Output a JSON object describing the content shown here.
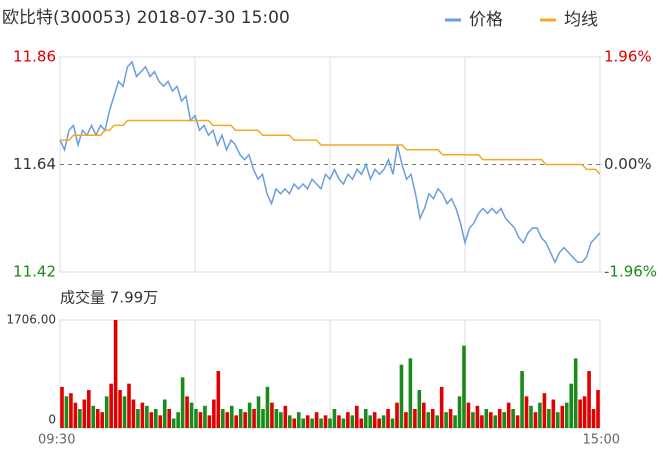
{
  "chart_data": [
    {
      "type": "line",
      "title": "欧比特(300053) 2018-07-30 15:00",
      "ylim": [
        11.42,
        11.86
      ],
      "yticks": [
        11.42,
        11.64,
        11.86
      ],
      "ytick_colors": [
        "#1a8a1a",
        "#333333",
        "#e00000"
      ],
      "y2lim": [
        -1.96,
        1.96
      ],
      "y2ticks": [
        {
          "value": -1.96,
          "label": "-1.96%"
        },
        {
          "value": 0,
          "label": "0.00%"
        },
        {
          "value": 1.96,
          "label": "1.96%"
        }
      ],
      "y2tick_colors": [
        "#1a8a1a",
        "#333333",
        "#e00000"
      ],
      "legend": "top-right",
      "series": [
        {
          "name": "价格",
          "color": "#6a9ee0",
          "values": [
            11.69,
            11.67,
            11.71,
            11.72,
            11.68,
            11.71,
            11.7,
            11.72,
            11.7,
            11.72,
            11.71,
            11.75,
            11.78,
            11.81,
            11.8,
            11.84,
            11.85,
            11.82,
            11.83,
            11.84,
            11.82,
            11.83,
            11.81,
            11.8,
            11.81,
            11.79,
            11.8,
            11.77,
            11.78,
            11.73,
            11.74,
            11.71,
            11.72,
            11.7,
            11.71,
            11.68,
            11.7,
            11.67,
            11.69,
            11.68,
            11.66,
            11.65,
            11.66,
            11.63,
            11.61,
            11.62,
            11.58,
            11.56,
            11.59,
            11.58,
            11.59,
            11.58,
            11.6,
            11.59,
            11.6,
            11.59,
            11.61,
            11.6,
            11.59,
            11.62,
            11.61,
            11.63,
            11.61,
            11.6,
            11.62,
            11.61,
            11.63,
            11.62,
            11.64,
            11.61,
            11.63,
            11.62,
            11.63,
            11.65,
            11.62,
            11.68,
            11.64,
            11.61,
            11.62,
            11.58,
            11.53,
            11.55,
            11.58,
            11.57,
            11.59,
            11.58,
            11.56,
            11.57,
            11.55,
            11.52,
            11.48,
            11.51,
            11.52,
            11.54,
            11.55,
            11.54,
            11.55,
            11.54,
            11.55,
            11.53,
            11.52,
            11.51,
            11.49,
            11.48,
            11.5,
            11.51,
            11.51,
            11.49,
            11.48,
            11.46,
            11.44,
            11.46,
            11.47,
            11.46,
            11.45,
            11.44,
            11.44,
            11.45,
            11.48,
            11.49,
            11.5
          ]
        },
        {
          "name": "均线",
          "color": "#f5a623",
          "values": [
            11.69,
            11.69,
            11.69,
            11.7,
            11.7,
            11.7,
            11.7,
            11.7,
            11.7,
            11.7,
            11.71,
            11.71,
            11.72,
            11.72,
            11.72,
            11.73,
            11.73,
            11.73,
            11.73,
            11.73,
            11.73,
            11.73,
            11.73,
            11.73,
            11.73,
            11.73,
            11.73,
            11.73,
            11.73,
            11.73,
            11.73,
            11.73,
            11.73,
            11.73,
            11.72,
            11.72,
            11.72,
            11.72,
            11.72,
            11.71,
            11.71,
            11.71,
            11.71,
            11.71,
            11.71,
            11.7,
            11.7,
            11.7,
            11.7,
            11.7,
            11.7,
            11.7,
            11.69,
            11.69,
            11.69,
            11.69,
            11.69,
            11.69,
            11.68,
            11.68,
            11.68,
            11.68,
            11.68,
            11.68,
            11.68,
            11.68,
            11.68,
            11.68,
            11.68,
            11.68,
            11.68,
            11.68,
            11.68,
            11.68,
            11.68,
            11.68,
            11.68,
            11.67,
            11.67,
            11.67,
            11.67,
            11.67,
            11.67,
            11.67,
            11.67,
            11.66,
            11.66,
            11.66,
            11.66,
            11.66,
            11.66,
            11.66,
            11.66,
            11.66,
            11.65,
            11.65,
            11.65,
            11.65,
            11.65,
            11.65,
            11.65,
            11.65,
            11.65,
            11.65,
            11.65,
            11.65,
            11.65,
            11.65,
            11.64,
            11.64,
            11.64,
            11.64,
            11.64,
            11.64,
            11.64,
            11.64,
            11.64,
            11.63,
            11.63,
            11.63,
            11.62
          ]
        }
      ]
    },
    {
      "type": "bar",
      "title": "成交量 7.99万",
      "categories": [
        "09:30",
        null,
        null,
        null,
        null,
        null,
        null,
        null,
        null,
        null,
        null,
        null,
        null,
        null,
        null,
        null,
        null,
        null,
        null,
        null,
        null,
        null,
        null,
        null,
        null,
        null,
        null,
        null,
        null,
        null,
        null,
        null,
        null,
        null,
        null,
        null,
        null,
        null,
        null,
        null,
        null,
        null,
        null,
        null,
        null,
        null,
        null,
        null,
        null,
        null,
        null,
        null,
        null,
        null,
        null,
        null,
        null,
        null,
        null,
        null,
        null,
        null,
        null,
        null,
        null,
        null,
        null,
        null,
        null,
        null,
        null,
        null,
        null,
        null,
        null,
        null,
        null,
        null,
        null,
        null,
        null,
        null,
        null,
        null,
        null,
        null,
        null,
        null,
        null,
        null,
        null,
        null,
        null,
        null,
        null,
        null,
        null,
        null,
        null,
        null,
        null,
        null,
        null,
        null,
        null,
        null,
        null,
        null,
        null,
        null,
        null,
        null,
        null,
        null,
        null,
        null,
        null,
        null,
        null,
        null,
        "15:00"
      ],
      "ylim": [
        0,
        1706
      ],
      "yticks": [
        0,
        {
          "value": 1706,
          "label": "1706.00"
        }
      ],
      "values": [
        650,
        500,
        550,
        400,
        300,
        450,
        600,
        350,
        300,
        250,
        500,
        700,
        1706,
        600,
        500,
        700,
        450,
        300,
        400,
        350,
        250,
        300,
        200,
        450,
        300,
        150,
        250,
        800,
        500,
        400,
        300,
        250,
        350,
        200,
        450,
        900,
        300,
        250,
        350,
        200,
        300,
        250,
        400,
        300,
        500,
        300,
        650,
        400,
        300,
        250,
        350,
        200,
        150,
        250,
        150,
        200,
        150,
        250,
        150,
        200,
        150,
        300,
        200,
        150,
        250,
        200,
        350,
        150,
        300,
        200,
        250,
        150,
        200,
        300,
        150,
        400,
        1000,
        250,
        1100,
        300,
        600,
        400,
        250,
        300,
        200,
        650,
        250,
        300,
        200,
        500,
        1300,
        400,
        250,
        350,
        200,
        300,
        250,
        200,
        300,
        250,
        400,
        300,
        200,
        900,
        500,
        350,
        250,
        400,
        550,
        300,
        450,
        250,
        350,
        400,
        700,
        1100,
        450,
        500,
        900,
        300,
        600
      ],
      "colors": [
        "#e00000",
        "#1a8a1a",
        "#e00000",
        "#e00000",
        "#1a8a1a",
        "#e00000",
        "#e00000",
        "#1a8a1a",
        "#e00000",
        "#e00000",
        "#1a8a1a",
        "#e00000",
        "#e00000",
        "#e00000",
        "#1a8a1a",
        "#e00000",
        "#e00000",
        "#1a8a1a",
        "#e00000",
        "#1a8a1a",
        "#e00000",
        "#1a8a1a",
        "#e00000",
        "#1a8a1a",
        "#e00000",
        "#1a8a1a",
        "#1a8a1a",
        "#1a8a1a",
        "#e00000",
        "#1a8a1a",
        "#1a8a1a",
        "#e00000",
        "#1a8a1a",
        "#e00000",
        "#e00000",
        "#e00000",
        "#1a8a1a",
        "#e00000",
        "#1a8a1a",
        "#e00000",
        "#1a8a1a",
        "#e00000",
        "#1a8a1a",
        "#e00000",
        "#1a8a1a",
        "#1a8a1a",
        "#1a8a1a",
        "#e00000",
        "#1a8a1a",
        "#1a8a1a",
        "#e00000",
        "#1a8a1a",
        "#e00000",
        "#1a8a1a",
        "#1a8a1a",
        "#e00000",
        "#1a8a1a",
        "#e00000",
        "#1a8a1a",
        "#e00000",
        "#1a8a1a",
        "#1a8a1a",
        "#e00000",
        "#1a8a1a",
        "#e00000",
        "#1a8a1a",
        "#e00000",
        "#e00000",
        "#1a8a1a",
        "#1a8a1a",
        "#e00000",
        "#e00000",
        "#1a8a1a",
        "#e00000",
        "#1a8a1a",
        "#e00000",
        "#1a8a1a",
        "#e00000",
        "#1a8a1a",
        "#e00000",
        "#1a8a1a",
        "#e00000",
        "#1a8a1a",
        "#e00000",
        "#1a8a1a",
        "#e00000",
        "#1a8a1a",
        "#e00000",
        "#1a8a1a",
        "#1a8a1a",
        "#1a8a1a",
        "#e00000",
        "#1a8a1a",
        "#e00000",
        "#e00000",
        "#1a8a1a",
        "#e00000",
        "#1a8a1a",
        "#e00000",
        "#1a8a1a",
        "#e00000",
        "#1a8a1a",
        "#e00000",
        "#1a8a1a",
        "#e00000",
        "#1a8a1a",
        "#e00000",
        "#1a8a1a",
        "#e00000",
        "#1a8a1a",
        "#e00000",
        "#1a8a1a",
        "#e00000",
        "#1a8a1a",
        "#1a8a1a",
        "#1a8a1a",
        "#e00000",
        "#e00000",
        "#e00000",
        "#e00000",
        "#e00000"
      ]
    }
  ]
}
